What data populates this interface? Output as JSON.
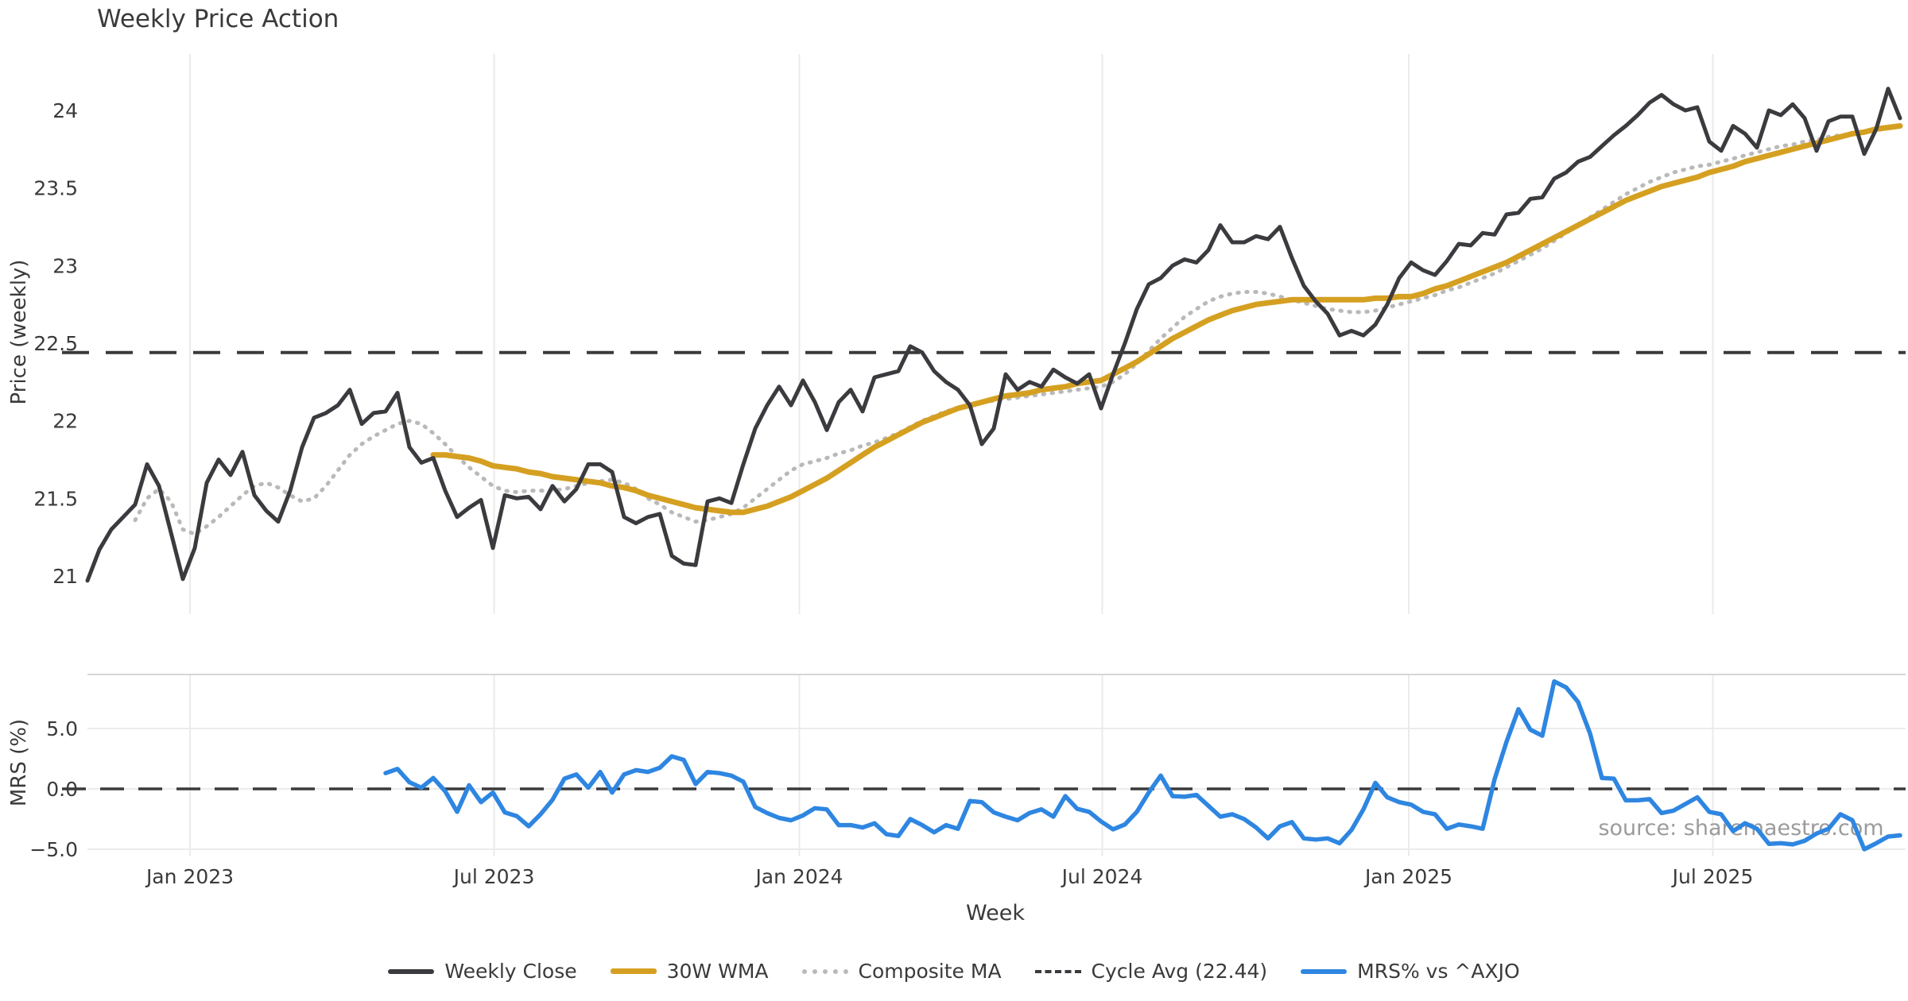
{
  "title": "Weekly Price Action",
  "watermark": "source: sharemaestro.com",
  "colors": {
    "weekly_close": "#3b3b3f",
    "wma": "#d5a021",
    "composite": "#b9b9b9",
    "cycle_avg": "#3a3a3a",
    "mrs": "#2e86e1",
    "grid": "#ebebeb",
    "spine": "#d6d6d6",
    "text": "#3a3a3a",
    "watermark": "#9b9b9b",
    "background": "#ffffff"
  },
  "legend": {
    "items": [
      {
        "label": "Weekly Close",
        "swatch": "solid-dark"
      },
      {
        "label": "30W WMA",
        "swatch": "solid-gold"
      },
      {
        "label": "Composite MA",
        "swatch": "dotted-gray"
      },
      {
        "label": "Cycle Avg (22.44)",
        "swatch": "dashed-dark"
      },
      {
        "label": "MRS% vs ^AXJO",
        "swatch": "solid-blue"
      }
    ]
  },
  "chart_data": [
    {
      "type": "line",
      "panel": "price",
      "title": "Weekly Price Action",
      "xlabel": "Week",
      "ylabel": "Price (weekly)",
      "x_unit": "week_index",
      "ylim": [
        20.74,
        24.38
      ],
      "yticks": [
        21,
        21.5,
        22,
        22.5,
        23,
        23.5,
        24
      ],
      "ytick_labels": [
        "21",
        "21.5",
        "22",
        "22.5",
        "23",
        "23.5",
        "24"
      ],
      "x_ticks": {
        "week_index": [
          8.6,
          34.1,
          59.7,
          85.1,
          110.8,
          136.3
        ],
        "labels": [
          "Jan 2023",
          "Jul 2023",
          "Jan 2024",
          "Jul 2024",
          "Jan 2025",
          "Jul 2025"
        ]
      },
      "grid": "vertical",
      "series": [
        {
          "name": "Weekly Close",
          "color_key": "weekly_close",
          "style": "solid",
          "width": 5,
          "start_week": 0,
          "values": [
            20.97,
            21.17,
            21.3,
            21.38,
            21.46,
            21.72,
            21.58,
            21.28,
            20.98,
            21.18,
            21.6,
            21.75,
            21.65,
            21.8,
            21.52,
            21.42,
            21.35,
            21.55,
            21.83,
            22.02,
            22.05,
            22.1,
            22.2,
            21.98,
            22.05,
            22.06,
            22.18,
            21.83,
            21.73,
            21.76,
            21.55,
            21.38,
            21.44,
            21.49,
            21.18,
            21.52,
            21.5,
            21.51,
            21.43,
            21.58,
            21.48,
            21.56,
            21.72,
            21.72,
            21.67,
            21.38,
            21.34,
            21.38,
            21.4,
            21.13,
            21.08,
            21.07,
            21.48,
            21.5,
            21.47,
            21.72,
            21.95,
            22.1,
            22.22,
            22.1,
            22.26,
            22.12,
            21.94,
            22.12,
            22.2,
            22.06,
            22.28,
            22.3,
            22.32,
            22.48,
            22.44,
            22.32,
            22.25,
            22.2,
            22.1,
            21.85,
            21.95,
            22.3,
            22.2,
            22.25,
            22.22,
            22.33,
            22.28,
            22.24,
            22.3,
            22.08,
            22.3,
            22.5,
            22.72,
            22.88,
            22.92,
            23.0,
            23.04,
            23.02,
            23.1,
            23.26,
            23.15,
            23.15,
            23.19,
            23.17,
            23.25,
            23.05,
            22.87,
            22.77,
            22.69,
            22.55,
            22.58,
            22.55,
            22.62,
            22.75,
            22.92,
            23.02,
            22.97,
            22.94,
            23.03,
            23.14,
            23.13,
            23.21,
            23.2,
            23.33,
            23.34,
            23.43,
            23.44,
            23.56,
            23.6,
            23.67,
            23.7,
            23.77,
            23.84,
            23.9,
            23.97,
            24.05,
            24.1,
            24.04,
            24.0,
            24.02,
            23.8,
            23.74,
            23.9,
            23.85,
            23.76,
            24.0,
            23.97,
            24.04,
            23.95,
            23.74,
            23.93,
            23.96,
            23.96,
            23.72,
            23.88,
            24.14,
            23.95
          ]
        },
        {
          "name": "30W WMA",
          "color_key": "wma",
          "style": "solid",
          "width": 7,
          "start_week": 29,
          "values": [
            21.78,
            21.78,
            21.77,
            21.76,
            21.74,
            21.71,
            21.7,
            21.69,
            21.67,
            21.66,
            21.64,
            21.63,
            21.62,
            21.61,
            21.6,
            21.58,
            21.57,
            21.55,
            21.52,
            21.5,
            21.48,
            21.46,
            21.44,
            21.43,
            21.42,
            21.41,
            21.41,
            21.43,
            21.45,
            21.48,
            21.51,
            21.55,
            21.59,
            21.63,
            21.68,
            21.73,
            21.78,
            21.83,
            21.87,
            21.91,
            21.95,
            21.99,
            22.02,
            22.05,
            22.08,
            22.1,
            22.12,
            22.14,
            22.16,
            22.17,
            22.18,
            22.2,
            22.21,
            22.22,
            22.24,
            22.25,
            22.26,
            22.3,
            22.34,
            22.38,
            22.43,
            22.48,
            22.53,
            22.57,
            22.61,
            22.65,
            22.68,
            22.71,
            22.73,
            22.75,
            22.76,
            22.77,
            22.78,
            22.78,
            22.78,
            22.78,
            22.78,
            22.78,
            22.78,
            22.79,
            22.79,
            22.8,
            22.8,
            22.82,
            22.85,
            22.87,
            22.9,
            22.93,
            22.96,
            22.99,
            23.02,
            23.06,
            23.1,
            23.14,
            23.18,
            23.22,
            23.26,
            23.3,
            23.34,
            23.38,
            23.42,
            23.45,
            23.48,
            23.51,
            23.53,
            23.55,
            23.57,
            23.6,
            23.62,
            23.64,
            23.67,
            23.69,
            23.71,
            23.73,
            23.75,
            23.77,
            23.79,
            23.81,
            23.83,
            23.85,
            23.86,
            23.88,
            23.89,
            23.9
          ]
        },
        {
          "name": "Composite MA",
          "color_key": "composite",
          "style": "dotted",
          "width": 5,
          "start_week": 4,
          "values": [
            21.36,
            21.5,
            21.56,
            21.48,
            21.3,
            21.27,
            21.32,
            21.38,
            21.45,
            21.52,
            21.58,
            21.6,
            21.57,
            21.52,
            21.48,
            21.5,
            21.58,
            21.68,
            21.78,
            21.85,
            21.9,
            21.94,
            21.98,
            22.0,
            21.98,
            21.92,
            21.85,
            21.77,
            21.7,
            21.64,
            21.58,
            21.55,
            21.54,
            21.55,
            21.55,
            21.55,
            21.56,
            21.58,
            21.6,
            21.61,
            21.62,
            21.6,
            21.56,
            21.5,
            21.46,
            21.41,
            21.38,
            21.35,
            21.36,
            21.38,
            21.4,
            21.44,
            21.5,
            21.56,
            21.62,
            21.68,
            21.72,
            21.74,
            21.76,
            21.79,
            21.81,
            21.84,
            21.86,
            21.89,
            21.92,
            21.96,
            22.0,
            22.03,
            22.06,
            22.08,
            22.1,
            22.12,
            22.13,
            22.14,
            22.15,
            22.16,
            22.17,
            22.18,
            22.19,
            22.2,
            22.21,
            22.22,
            22.25,
            22.3,
            22.37,
            22.45,
            22.53,
            22.6,
            22.67,
            22.72,
            22.77,
            22.8,
            22.82,
            22.83,
            22.83,
            22.82,
            22.8,
            22.78,
            22.76,
            22.74,
            22.72,
            22.71,
            22.7,
            22.7,
            22.71,
            22.73,
            22.75,
            22.77,
            22.79,
            22.81,
            22.84,
            22.86,
            22.89,
            22.92,
            22.95,
            22.99,
            23.03,
            23.07,
            23.11,
            23.16,
            23.21,
            23.26,
            23.31,
            23.36,
            23.41,
            23.46,
            23.5,
            23.54,
            23.57,
            23.6,
            23.62,
            23.64,
            23.65,
            23.67,
            23.69,
            23.71,
            23.73,
            23.75,
            23.77,
            23.78,
            23.8,
            23.81,
            23.83,
            23.84,
            23.85,
            23.86,
            23.87,
            23.89,
            23.9
          ]
        },
        {
          "name": "Cycle Avg",
          "color_key": "cycle_avg",
          "style": "dashed",
          "type": "hline",
          "width": 4,
          "value": 22.44
        }
      ]
    },
    {
      "type": "line",
      "panel": "mrs",
      "ylabel": "MRS (%)",
      "x_unit": "week_index",
      "ylim": [
        -6.1,
        9.5
      ],
      "yticks": [
        5.0,
        0.0,
        -5.0
      ],
      "ytick_labels": [
        "5.0",
        "0.0",
        "−5.0"
      ],
      "grid": "both",
      "zero_line": {
        "style": "dashed",
        "value": 0.0,
        "color_key": "cycle_avg"
      },
      "series": [
        {
          "name": "MRS% vs ^AXJO",
          "color_key": "mrs",
          "style": "solid",
          "width": 5.5,
          "start_week": 25,
          "values": [
            1.3,
            1.65,
            0.55,
            0.1,
            0.9,
            -0.2,
            -1.9,
            0.3,
            -1.1,
            -0.3,
            -1.95,
            -2.25,
            -3.1,
            -2.1,
            -0.9,
            0.85,
            1.2,
            0.1,
            1.4,
            -0.3,
            1.2,
            1.55,
            1.4,
            1.75,
            2.7,
            2.4,
            0.4,
            1.4,
            1.3,
            1.1,
            0.6,
            -1.5,
            -2.0,
            -2.4,
            -2.6,
            -2.2,
            -1.6,
            -1.7,
            -3.0,
            -3.0,
            -3.2,
            -2.85,
            -3.75,
            -3.9,
            -2.5,
            -3.0,
            -3.6,
            -3.0,
            -3.3,
            -1.0,
            -1.1,
            -1.95,
            -2.3,
            -2.6,
            -2.0,
            -1.7,
            -2.3,
            -0.6,
            -1.65,
            -1.9,
            -2.7,
            -3.35,
            -2.95,
            -1.9,
            -0.3,
            1.1,
            -0.6,
            -0.65,
            -0.5,
            -1.4,
            -2.3,
            -2.1,
            -2.5,
            -3.2,
            -4.1,
            -3.1,
            -2.75,
            -4.1,
            -4.2,
            -4.1,
            -4.5,
            -3.4,
            -1.7,
            0.5,
            -0.7,
            -1.1,
            -1.3,
            -1.9,
            -2.1,
            -3.3,
            -2.95,
            -3.1,
            -3.3,
            0.8,
            3.9,
            6.6,
            4.9,
            4.4,
            8.9,
            8.4,
            7.2,
            4.6,
            0.9,
            0.85,
            -0.95,
            -0.95,
            -0.85,
            -2.0,
            -1.8,
            -1.25,
            -0.7,
            -1.9,
            -2.1,
            -3.5,
            -2.85,
            -3.3,
            -4.55,
            -4.5,
            -4.6,
            -4.3,
            -3.7,
            -3.3,
            -2.1,
            -2.6,
            -5.0,
            -4.5,
            -3.95,
            -3.85
          ]
        }
      ]
    }
  ]
}
